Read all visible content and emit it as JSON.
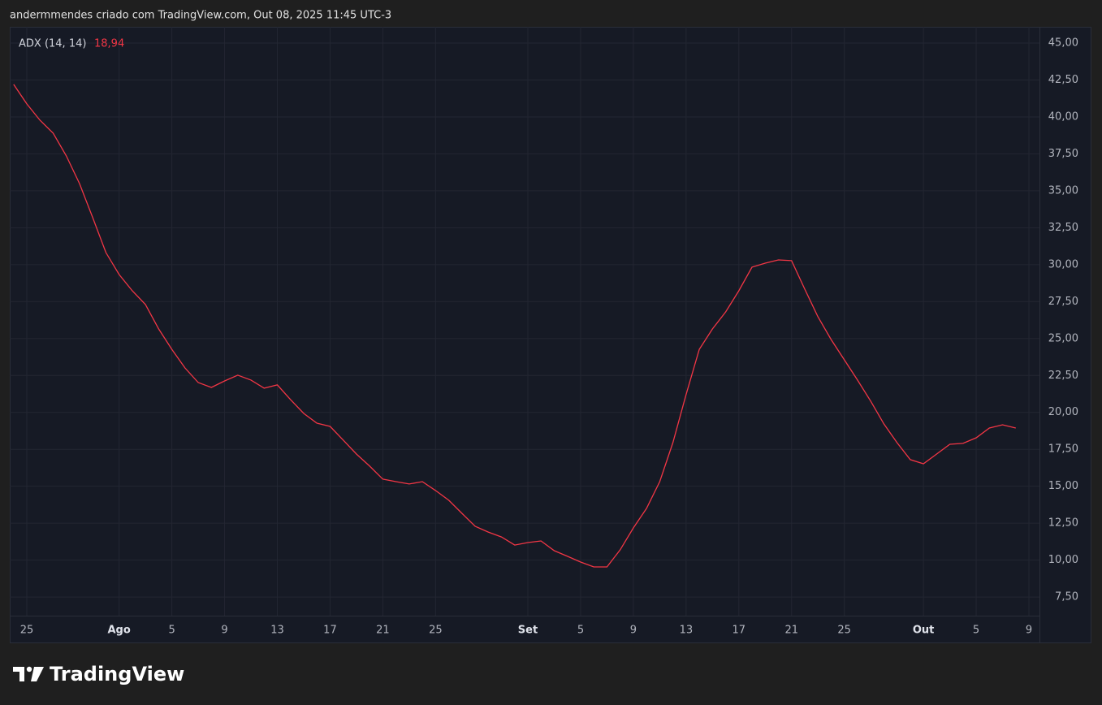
{
  "header": "andermmendes criado com TradingView.com, Out 08, 2025 11:45 UTC-3",
  "footer": {
    "logo": "TradingView"
  },
  "chart_data": {
    "type": "line",
    "categories": [
      null,
      "25",
      null,
      null,
      null,
      null,
      null,
      null,
      "Ago",
      null,
      null,
      null,
      "5",
      null,
      null,
      null,
      "9",
      null,
      null,
      null,
      "13",
      null,
      null,
      null,
      "17",
      null,
      null,
      null,
      "21",
      null,
      null,
      null,
      "25",
      null,
      null,
      null,
      null,
      null,
      null,
      "Set",
      null,
      null,
      null,
      "5",
      null,
      null,
      null,
      "9",
      null,
      null,
      null,
      "13",
      null,
      null,
      null,
      "17",
      null,
      null,
      null,
      "21",
      null,
      null,
      null,
      "25",
      null,
      null,
      null,
      null,
      null,
      "Out",
      null,
      null,
      null,
      "5",
      null,
      null,
      null,
      "9"
    ],
    "series": [
      {
        "name": "ADX (14, 14)",
        "color": "#f23645",
        "current_value_label": "18,94",
        "values": [
          42.2,
          40.88,
          39.78,
          38.9,
          37.36,
          35.49,
          33.18,
          30.82,
          29.33,
          28.23,
          27.3,
          25.65,
          24.27,
          23.01,
          22.02,
          21.69,
          22.13,
          22.52,
          22.19,
          21.64,
          21.86,
          20.87,
          19.93,
          19.27,
          19.05,
          18.12,
          17.18,
          16.36,
          15.48,
          15.31,
          15.15,
          15.31,
          14.71,
          14.05,
          13.17,
          12.29,
          11.9,
          11.57,
          11.02,
          11.19,
          11.3,
          10.64,
          10.26,
          9.87,
          9.54,
          9.54,
          10.7,
          12.18,
          13.5,
          15.31,
          17.95,
          21.2,
          24.27,
          25.65,
          26.8,
          28.23,
          29.83,
          30.1,
          30.32,
          30.27,
          28.34,
          26.47,
          24.93,
          23.56,
          22.19,
          20.76,
          19.22,
          17.95,
          16.8,
          16.52,
          17.18,
          17.84,
          17.9,
          18.28,
          18.94,
          19.16,
          18.94,
          null
        ]
      }
    ],
    "ylim": [
      6.24,
      46.1
    ],
    "yticks": [
      {
        "value": 7.5,
        "label": "7,50"
      },
      {
        "value": 10,
        "label": "10,00"
      },
      {
        "value": 12.5,
        "label": "12,50"
      },
      {
        "value": 15,
        "label": "15,00"
      },
      {
        "value": 17.5,
        "label": "17,50"
      },
      {
        "value": 20,
        "label": "20,00"
      },
      {
        "value": 22.5,
        "label": "22,50"
      },
      {
        "value": 25,
        "label": "25,00"
      },
      {
        "value": 27.5,
        "label": "27,50"
      },
      {
        "value": 30,
        "label": "30,00"
      },
      {
        "value": 32.5,
        "label": "32,50"
      },
      {
        "value": 35,
        "label": "35,00"
      },
      {
        "value": 37.5,
        "label": "37,50"
      },
      {
        "value": 40,
        "label": "40,00"
      },
      {
        "value": 42.5,
        "label": "42,50"
      },
      {
        "value": 45,
        "label": "45,00"
      }
    ],
    "grid": true,
    "y_axis_side": "right"
  }
}
